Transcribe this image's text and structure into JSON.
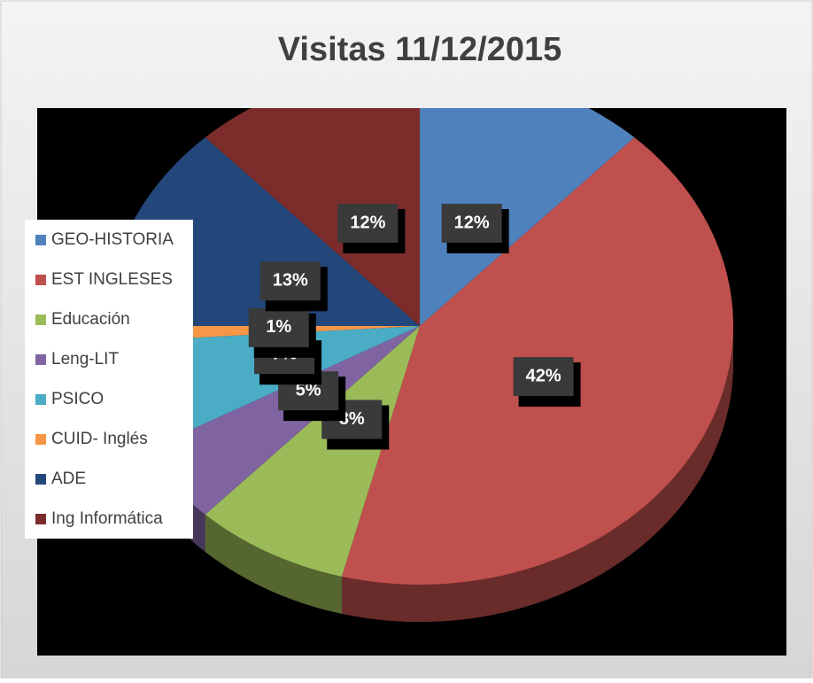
{
  "chart_data": {
    "type": "pie",
    "title": "Visitas 11/12/2015",
    "categories": [
      "GEO-HISTORIA",
      "EST INGLESES",
      "Educación",
      "Leng-LIT",
      "PSICO",
      "CUID- Inglés",
      "ADE",
      "Ing Informática"
    ],
    "values": [
      12,
      42,
      8,
      5,
      7,
      1,
      13,
      12
    ],
    "value_labels": [
      "12%",
      "42%",
      "8%",
      "5%",
      "7%",
      "1%",
      "13%",
      "12%"
    ],
    "colors": [
      "#4f81bd",
      "#c0504d",
      "#9bbb59",
      "#8064a2",
      "#4bacc6",
      "#f79646",
      "#23477a",
      "#7b2c2b"
    ],
    "legend": "left"
  }
}
